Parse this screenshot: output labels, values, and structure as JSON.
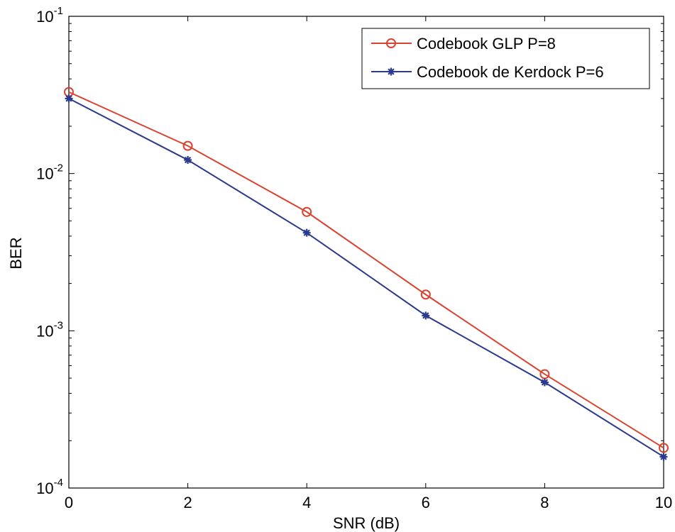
{
  "chart_data": {
    "type": "line",
    "title": "",
    "xlabel": "SNR (dB)",
    "ylabel": "BER",
    "xlim": [
      0,
      10
    ],
    "ylim": [
      0.0001,
      0.1
    ],
    "yscale": "log",
    "grid": false,
    "legend_position": "top-right",
    "x_ticks": [
      {
        "value": 0,
        "label": "0"
      },
      {
        "value": 2,
        "label": "2"
      },
      {
        "value": 4,
        "label": "4"
      },
      {
        "value": 6,
        "label": "6"
      },
      {
        "value": 8,
        "label": "8"
      },
      {
        "value": 10,
        "label": "10"
      }
    ],
    "y_ticks": [
      {
        "value": 0.1,
        "base": "10",
        "exp": "-1"
      },
      {
        "value": 0.01,
        "base": "10",
        "exp": "-2"
      },
      {
        "value": 0.001,
        "base": "10",
        "exp": "-3"
      },
      {
        "value": 0.0001,
        "base": "10",
        "exp": "-4"
      }
    ],
    "x": [
      0,
      2,
      4,
      6,
      8,
      10
    ],
    "series": [
      {
        "name": "Codebook GLP P=8",
        "color": "#d9432f",
        "marker": "circle",
        "values": [
          0.033,
          0.015,
          0.0057,
          0.0017,
          0.00053,
          0.00018
        ]
      },
      {
        "name": "Codebook de Kerdock P=6",
        "color": "#2b3a8c",
        "marker": "star",
        "values": [
          0.03,
          0.0122,
          0.0042,
          0.00125,
          0.00047,
          0.000158
        ]
      }
    ]
  }
}
